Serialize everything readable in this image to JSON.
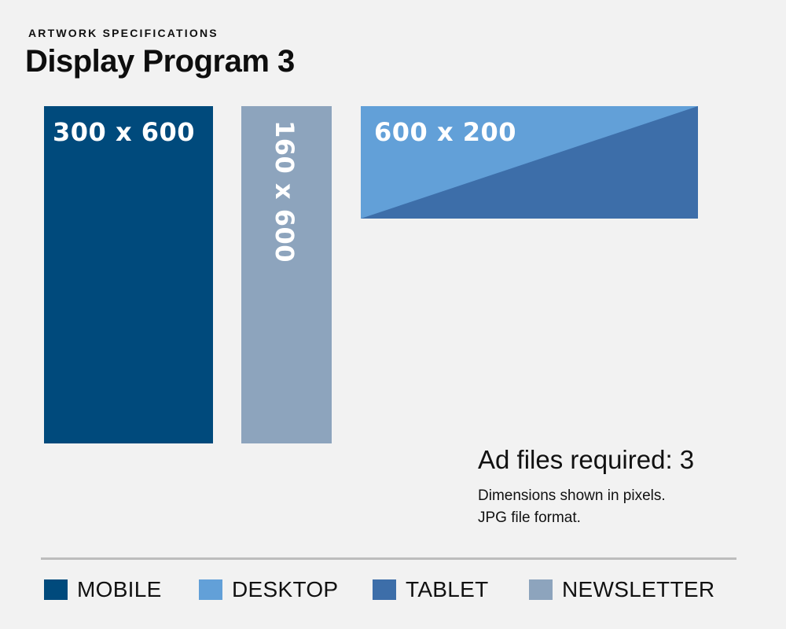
{
  "header": {
    "kicker": "ARTWORK SPECIFICATIONS",
    "title": "Display Program 3"
  },
  "diagram": {
    "boxes": [
      {
        "label": "300 x 600",
        "category": "MOBILE",
        "color": "#004a7c"
      },
      {
        "label": "160 x 600",
        "category": "NEWSLETTER",
        "color": "#8da4bd"
      },
      {
        "label": "600 x 200",
        "category": "DESKTOP/TABLET",
        "color_primary": "#62a0d8",
        "color_secondary": "#3d6ea9"
      }
    ]
  },
  "info": {
    "required": "Ad files required: 3",
    "note1": "Dimensions shown in pixels.",
    "note2": "JPG file format."
  },
  "legend": [
    {
      "label": "MOBILE",
      "color": "#004a7c"
    },
    {
      "label": "DESKTOP",
      "color": "#62a0d8"
    },
    {
      "label": "TABLET",
      "color": "#3d6ea9"
    },
    {
      "label": "NEWSLETTER",
      "color": "#8da4bd"
    }
  ]
}
